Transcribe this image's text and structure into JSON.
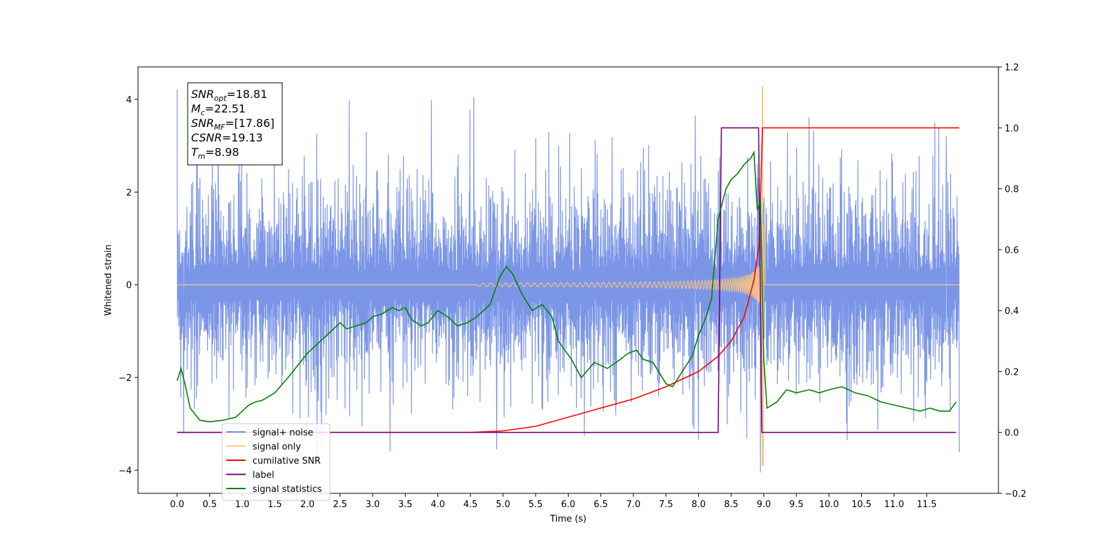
{
  "chart_data": {
    "type": "line",
    "xlabel": "Time (s)",
    "ylabel": "Whitened strain",
    "xlim": [
      -0.6,
      12.6
    ],
    "ylim": [
      -4.5,
      4.7
    ],
    "ylim_right": [
      -0.2,
      1.2
    ],
    "x_ticks": [
      0.0,
      0.5,
      1.0,
      1.5,
      2.0,
      2.5,
      3.0,
      3.5,
      4.0,
      4.5,
      5.0,
      5.5,
      6.0,
      6.5,
      7.0,
      7.5,
      8.0,
      8.5,
      9.0,
      9.5,
      10.0,
      10.5,
      11.0,
      11.5
    ],
    "x_tick_labels": [
      "0.0",
      "0.5",
      "1.0",
      "1.5",
      "2.0",
      "2.5",
      "3.0",
      "3.5",
      "4.0",
      "4.5",
      "5.0",
      "5.5",
      "6.0",
      "6.5",
      "7.0",
      "7.5",
      "8.0",
      "8.5",
      "9.0",
      "9.5",
      "10.0",
      "10.5",
      "11.0",
      "11.5"
    ],
    "y_ticks": [
      -4,
      -2,
      0,
      2,
      4
    ],
    "y_tick_labels": [
      "−4",
      "−2",
      "0",
      "2",
      "4"
    ],
    "y2_ticks": [
      -0.2,
      0.0,
      0.2,
      0.4,
      0.6,
      0.8,
      1.0,
      1.2
    ],
    "y2_tick_labels": [
      "−0.2",
      "0.0",
      "0.2",
      "0.4",
      "0.6",
      "0.8",
      "1.0",
      "1.2"
    ],
    "stats": [
      {
        "name": "SNR",
        "sub": "opt",
        "value": "=18.81"
      },
      {
        "name": "M",
        "sub": "c",
        "value": "=22.51"
      },
      {
        "name": "SNR",
        "sub": "MF",
        "value": "=[17.86]"
      },
      {
        "name": "CSNR",
        "sub": "",
        "value": "=19.13"
      },
      {
        "name": "T",
        "sub": "m",
        "value": "=8.98"
      }
    ],
    "legend": {
      "placement": "lower-left",
      "entries": [
        {
          "label": "signal+ noise",
          "color": "#7590e6"
        },
        {
          "label": "signal only",
          "color": "#ffc87a"
        },
        {
          "label": "cumilative SNR",
          "color": "#ff0000"
        },
        {
          "label": "label",
          "color": "#7a007a"
        },
        {
          "label": "signal statistics",
          "color": "#008000"
        }
      ]
    },
    "series": [
      {
        "name": "signal+ noise",
        "axis": "left",
        "color": "#7590e6",
        "x_range": [
          0.0,
          12.0
        ],
        "samples": 2400,
        "band": [
          -2.2,
          2.3
        ],
        "extreme_spikes": [
          {
            "x": 4.55,
            "y": 4.05
          },
          {
            "x": 7.95,
            "y": 3.65
          },
          {
            "x": 4.9,
            "y": -3.55
          },
          {
            "x": 8.95,
            "y": -4.05
          },
          {
            "x": 0.1,
            "y": -3.2
          },
          {
            "x": 0.95,
            "y": 3.1
          },
          {
            "x": 2.9,
            "y": 3.3
          },
          {
            "x": 5.7,
            "y": 3.3
          },
          {
            "x": 11.8,
            "y": 3.2
          },
          {
            "x": 8.0,
            "y": -3.35
          }
        ]
      },
      {
        "name": "signal only",
        "axis": "left",
        "color": "#ffc87a",
        "chirp": {
          "start": 4.6,
          "merger": 8.98,
          "peak": 4.28,
          "trough": -3.9
        }
      },
      {
        "name": "cumilative SNR",
        "axis": "right",
        "color": "#ff0000",
        "x": [
          0.0,
          4.5,
          5.0,
          5.5,
          6.0,
          6.5,
          7.0,
          7.5,
          8.0,
          8.3,
          8.5,
          8.7,
          8.85,
          8.93,
          8.98,
          9.0,
          12.0
        ],
        "y": [
          0.0,
          0.0,
          0.005,
          0.02,
          0.05,
          0.08,
          0.11,
          0.15,
          0.2,
          0.25,
          0.3,
          0.38,
          0.5,
          0.62,
          1.0,
          1.0,
          1.0
        ]
      },
      {
        "name": "label",
        "axis": "right",
        "color": "#7a007a",
        "x": [
          0.0,
          8.3,
          8.35,
          8.92,
          8.97,
          11.95
        ],
        "y": [
          0.0,
          0.0,
          1.0,
          1.0,
          0.0,
          0.0
        ]
      },
      {
        "name": "signal statistics",
        "axis": "right",
        "color": "#008000",
        "x": [
          0.0,
          0.06,
          0.12,
          0.2,
          0.35,
          0.5,
          0.7,
          0.9,
          1.0,
          1.1,
          1.2,
          1.3,
          1.5,
          1.7,
          1.85,
          2.0,
          2.2,
          2.35,
          2.5,
          2.6,
          2.75,
          2.9,
          3.0,
          3.15,
          3.3,
          3.4,
          3.5,
          3.6,
          3.75,
          3.85,
          4.0,
          4.15,
          4.3,
          4.45,
          4.6,
          4.8,
          4.95,
          5.05,
          5.15,
          5.3,
          5.45,
          5.6,
          5.75,
          5.85,
          6.05,
          6.2,
          6.4,
          6.6,
          6.8,
          6.92,
          7.05,
          7.15,
          7.3,
          7.5,
          7.6,
          7.75,
          7.9,
          8.0,
          8.1,
          8.2,
          8.3,
          8.42,
          8.5,
          8.6,
          8.7,
          8.8,
          8.85,
          8.9,
          8.95,
          9.0,
          9.05,
          9.2,
          9.35,
          9.5,
          9.7,
          9.85,
          10.0,
          10.2,
          10.4,
          10.6,
          10.8,
          11.0,
          11.2,
          11.4,
          11.55,
          11.7,
          11.85,
          11.95
        ],
        "y": [
          0.17,
          0.21,
          0.16,
          0.08,
          0.04,
          0.035,
          0.04,
          0.05,
          0.07,
          0.09,
          0.1,
          0.105,
          0.13,
          0.18,
          0.22,
          0.26,
          0.3,
          0.33,
          0.36,
          0.34,
          0.35,
          0.36,
          0.38,
          0.39,
          0.41,
          0.4,
          0.41,
          0.37,
          0.35,
          0.36,
          0.4,
          0.38,
          0.35,
          0.36,
          0.38,
          0.42,
          0.51,
          0.545,
          0.52,
          0.45,
          0.4,
          0.42,
          0.38,
          0.3,
          0.24,
          0.18,
          0.23,
          0.21,
          0.24,
          0.26,
          0.27,
          0.24,
          0.23,
          0.16,
          0.15,
          0.2,
          0.25,
          0.32,
          0.37,
          0.44,
          0.7,
          0.8,
          0.83,
          0.85,
          0.88,
          0.9,
          0.92,
          0.73,
          0.76,
          0.24,
          0.08,
          0.1,
          0.14,
          0.13,
          0.14,
          0.13,
          0.14,
          0.15,
          0.13,
          0.12,
          0.1,
          0.09,
          0.08,
          0.07,
          0.08,
          0.07,
          0.07,
          0.1
        ]
      }
    ]
  }
}
